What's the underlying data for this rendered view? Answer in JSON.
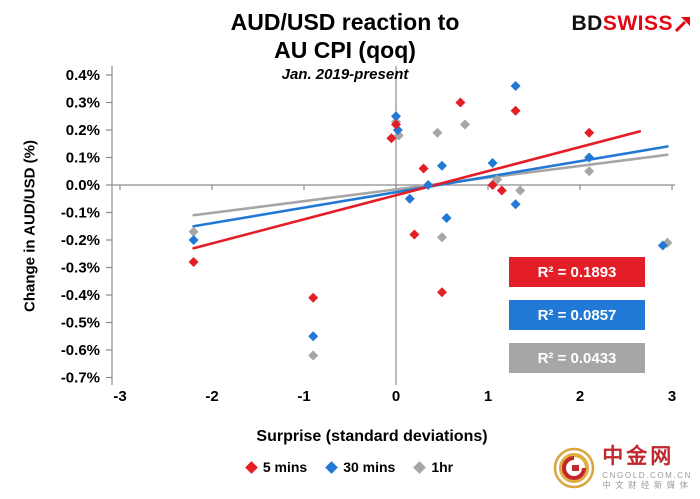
{
  "branding": {
    "bd": "BD",
    "swiss": "SWISS"
  },
  "watermark": {
    "name": "中金网",
    "domain": "CNGOLD.COM.CN",
    "tagline": "中 文 财 经 新 媒 体"
  },
  "chart_data": {
    "type": "scatter",
    "title": "AUD/USD reaction to AU CPI (qoq)",
    "title_line1": "AUD/USD reaction to",
    "title_line2": "AU CPI (qoq)",
    "subtitle": "Jan. 2019-present",
    "xlabel": "Surprise (standard deviations)",
    "ylabel": "Change in AUD/USD (%)",
    "xlim": [
      -3,
      3
    ],
    "ylim": [
      -0.7,
      0.4
    ],
    "grid": false,
    "legend_position": "bottom",
    "x_ticks": [
      -3,
      -2,
      -1,
      0,
      1,
      2,
      3
    ],
    "y_ticks": [
      0.4,
      0.3,
      0.2,
      0.1,
      0.0,
      -0.1,
      -0.2,
      -0.3,
      -0.4,
      -0.5,
      -0.6,
      -0.7
    ],
    "y_tick_labels": [
      "0.4%",
      "0.3%",
      "0.2%",
      "0.1%",
      "0.0%",
      "-0.1%",
      "-0.2%",
      "-0.3%",
      "-0.4%",
      "-0.5%",
      "-0.6%",
      "-0.7%"
    ],
    "series": [
      {
        "name": "5 mins",
        "color": "#E41E26",
        "r2": 0.1893,
        "r2_label": "R² = 0.1893",
        "points": [
          [
            -2.2,
            -0.28
          ],
          [
            -0.9,
            -0.41
          ],
          [
            -0.05,
            0.17
          ],
          [
            0.0,
            0.22
          ],
          [
            0.2,
            -0.18
          ],
          [
            0.3,
            0.06
          ],
          [
            0.5,
            -0.39
          ],
          [
            0.7,
            0.3
          ],
          [
            1.05,
            0.0
          ],
          [
            1.15,
            -0.02
          ],
          [
            1.3,
            0.27
          ],
          [
            2.1,
            0.19
          ]
        ],
        "trendline": [
          [
            -2.2,
            -0.23
          ],
          [
            2.65,
            0.195
          ]
        ]
      },
      {
        "name": "30 mins",
        "color": "#2179D5",
        "r2": 0.0857,
        "r2_label": "R² = 0.0857",
        "points": [
          [
            -2.2,
            -0.2
          ],
          [
            -0.9,
            -0.55
          ],
          [
            0.0,
            0.25
          ],
          [
            0.02,
            0.2
          ],
          [
            0.15,
            -0.05
          ],
          [
            0.35,
            0.0
          ],
          [
            0.5,
            0.07
          ],
          [
            0.55,
            -0.12
          ],
          [
            1.05,
            0.08
          ],
          [
            1.3,
            0.36
          ],
          [
            1.3,
            -0.07
          ],
          [
            2.1,
            0.1
          ],
          [
            2.9,
            -0.22
          ]
        ],
        "trendline": [
          [
            -2.2,
            -0.15
          ],
          [
            2.95,
            0.14
          ]
        ]
      },
      {
        "name": "1hr",
        "color": "#A6A6A6",
        "r2": 0.0433,
        "r2_label": "R² = 0.0433",
        "points": [
          [
            -2.2,
            -0.17
          ],
          [
            -0.9,
            -0.62
          ],
          [
            0.0,
            0.23
          ],
          [
            0.03,
            0.18
          ],
          [
            0.45,
            0.19
          ],
          [
            0.5,
            -0.19
          ],
          [
            0.75,
            0.22
          ],
          [
            1.1,
            0.02
          ],
          [
            1.35,
            -0.02
          ],
          [
            2.1,
            0.05
          ],
          [
            2.95,
            -0.21
          ]
        ],
        "trendline": [
          [
            -2.2,
            -0.11
          ],
          [
            2.95,
            0.11
          ]
        ]
      }
    ]
  }
}
